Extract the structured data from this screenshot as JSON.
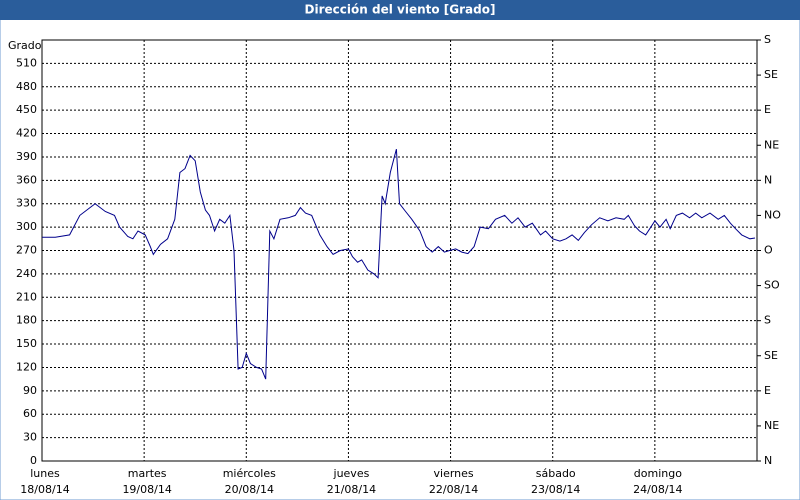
{
  "chart_data": {
    "type": "line",
    "title": "Dirección del viento [Grado]",
    "y_label": "Grado",
    "x": [
      0,
      0.13,
      0.27,
      0.37,
      0.52,
      0.62,
      0.71,
      0.76,
      0.84,
      0.89,
      0.94,
      1.01,
      1.06,
      1.09,
      1.16,
      1.23,
      1.3,
      1.35,
      1.4,
      1.45,
      1.5,
      1.55,
      1.6,
      1.64,
      1.69,
      1.74,
      1.79,
      1.84,
      1.88,
      1.92,
      1.96,
      2.0,
      2.04,
      2.1,
      2.15,
      2.19,
      2.23,
      2.27,
      2.33,
      2.41,
      2.48,
      2.53,
      2.58,
      2.64,
      2.72,
      2.79,
      2.85,
      2.92,
      3.0,
      3.04,
      3.09,
      3.13,
      3.19,
      3.25,
      3.29,
      3.33,
      3.36,
      3.41,
      3.47,
      3.5,
      3.56,
      3.62,
      3.7,
      3.76,
      3.82,
      3.88,
      3.94,
      3.99,
      4.05,
      4.11,
      4.17,
      4.23,
      4.29,
      4.37,
      4.44,
      4.53,
      4.6,
      4.66,
      4.73,
      4.8,
      4.88,
      4.93,
      5.0,
      5.07,
      5.13,
      5.19,
      5.25,
      5.31,
      5.38,
      5.46,
      5.54,
      5.62,
      5.7,
      5.74,
      5.8,
      5.85,
      5.91,
      5.95,
      6.0,
      6.05,
      6.11,
      6.15,
      6.21,
      6.27,
      6.34,
      6.4,
      6.46,
      6.54,
      6.62,
      6.68,
      6.74,
      6.79,
      6.85,
      6.93,
      6.98
    ],
    "series": [
      {
        "color": "#00008b",
        "values": [
          287,
          287,
          290,
          315,
          330,
          320,
          315,
          300,
          288,
          285,
          295,
          290,
          275,
          265,
          278,
          285,
          310,
          370,
          375,
          392,
          385,
          345,
          322,
          315,
          295,
          310,
          305,
          315,
          270,
          118,
          120,
          138,
          125,
          120,
          118,
          105,
          295,
          285,
          310,
          312,
          315,
          325,
          318,
          315,
          290,
          275,
          265,
          270,
          272,
          262,
          255,
          258,
          245,
          240,
          235,
          340,
          330,
          370,
          400,
          330,
          320,
          310,
          295,
          275,
          268,
          275,
          268,
          270,
          272,
          268,
          266,
          275,
          300,
          298,
          310,
          315,
          305,
          312,
          300,
          305,
          290,
          295,
          285,
          282,
          285,
          290,
          283,
          293,
          303,
          312,
          308,
          312,
          310,
          315,
          302,
          295,
          290,
          298,
          308,
          300,
          310,
          298,
          315,
          318,
          312,
          318,
          312,
          318,
          310,
          315,
          305,
          298,
          290,
          285,
          286
        ]
      }
    ],
    "xlim": [
      0,
      7
    ],
    "xticks": [
      {
        "value": 0,
        "label": "lunes"
      },
      {
        "value": 1,
        "label": "martes"
      },
      {
        "value": 2,
        "label": "miércoles"
      },
      {
        "value": 3,
        "label": "jueves"
      },
      {
        "value": 4,
        "label": "viernes"
      },
      {
        "value": 5,
        "label": "sábado"
      },
      {
        "value": 6,
        "label": "domingo"
      }
    ],
    "xtick_dates": [
      "18/08/14",
      "19/08/14",
      "20/08/14",
      "21/08/14",
      "22/08/14",
      "23/08/14",
      "24/08/14"
    ],
    "ylim": [
      0,
      540
    ],
    "yticks": [
      0,
      30,
      60,
      90,
      120,
      150,
      180,
      210,
      240,
      270,
      300,
      330,
      360,
      390,
      420,
      450,
      480,
      510
    ],
    "y2lim": [
      0,
      540
    ],
    "y2ticks": [
      {
        "value": 0,
        "label": "N"
      },
      {
        "value": 45,
        "label": "NE"
      },
      {
        "value": 90,
        "label": "E"
      },
      {
        "value": 135,
        "label": "SE"
      },
      {
        "value": 180,
        "label": "S"
      },
      {
        "value": 225,
        "label": "SO"
      },
      {
        "value": 270,
        "label": "O"
      },
      {
        "value": 315,
        "label": "NO"
      },
      {
        "value": 360,
        "label": "N"
      },
      {
        "value": 405,
        "label": "NE"
      },
      {
        "value": 450,
        "label": "E"
      },
      {
        "value": 495,
        "label": "SE"
      },
      {
        "value": 540,
        "label": "S"
      }
    ],
    "grid": true
  }
}
